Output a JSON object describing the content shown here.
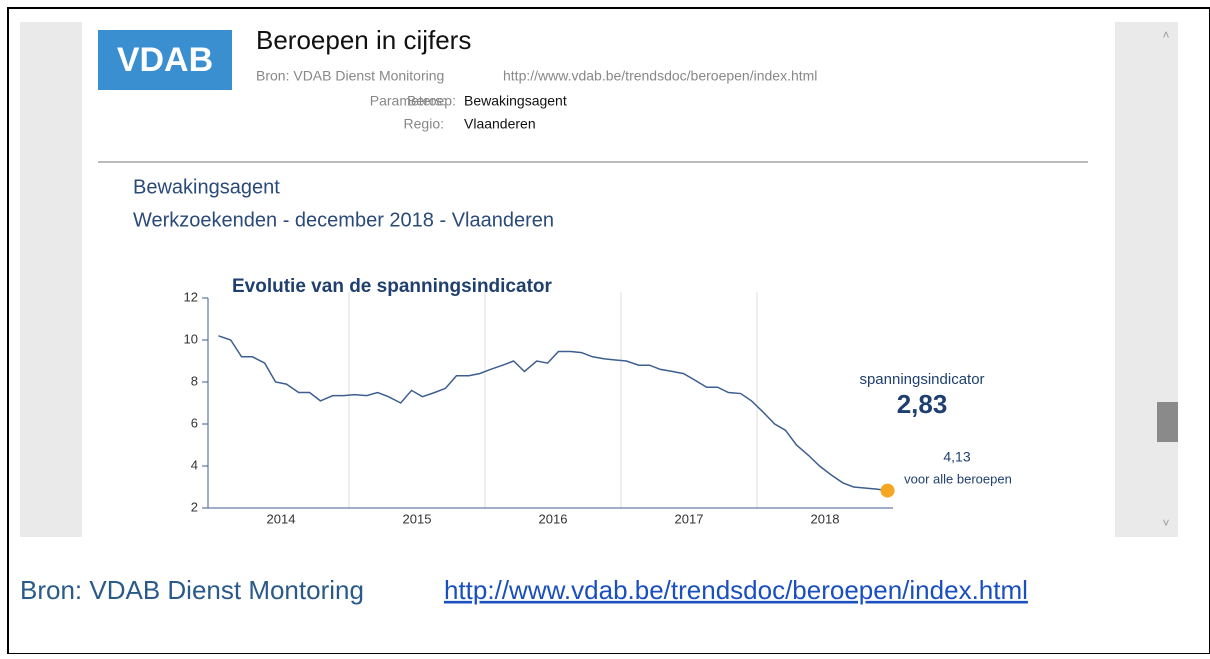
{
  "header": {
    "logo": "VDAB",
    "title": "Beroepen in cijfers",
    "source_label": "Bron: VDAB Dienst Monitoring",
    "source_url": "http://www.vdab.be/trendsdoc/beroepen/index.html",
    "parameters_label": "Parameters:",
    "beroep_label": "Beroep:",
    "beroep": "Bewakingsagent",
    "regio_label": "Regio:",
    "regio": "Vlaanderen"
  },
  "subtitle_1": "Bewakingsagent",
  "subtitle_2": "Werkzoekenden - december 2018 - Vlaanderen",
  "chart_data": {
    "type": "line",
    "title": "Evolutie van de spanningsindicator",
    "x": [
      2014.04,
      2014.13,
      2014.21,
      2014.29,
      2014.38,
      2014.46,
      2014.54,
      2014.63,
      2014.71,
      2014.79,
      2014.88,
      2014.96,
      2015.04,
      2015.13,
      2015.21,
      2015.29,
      2015.38,
      2015.46,
      2015.54,
      2015.63,
      2015.71,
      2015.79,
      2015.88,
      2015.96,
      2016.04,
      2016.13,
      2016.21,
      2016.29,
      2016.38,
      2016.46,
      2016.54,
      2016.63,
      2016.71,
      2016.79,
      2016.88,
      2016.96,
      2017.04,
      2017.13,
      2017.21,
      2017.29,
      2017.38,
      2017.46,
      2017.54,
      2017.63,
      2017.71,
      2017.79,
      2017.88,
      2017.96,
      2018.04,
      2018.13,
      2018.21,
      2018.29,
      2018.38,
      2018.46,
      2018.54,
      2018.63,
      2018.71,
      2018.79,
      2018.88,
      2018.96
    ],
    "series": [
      {
        "color": "#3d5f8f",
        "values": [
          10.2,
          10.0,
          9.2,
          9.2,
          8.9,
          8.0,
          7.9,
          7.5,
          7.5,
          7.1,
          7.35,
          7.35,
          7.4,
          7.35,
          7.5,
          7.3,
          7.0,
          7.6,
          7.3,
          7.5,
          7.7,
          8.3,
          8.3,
          8.4,
          8.6,
          8.8,
          9.0,
          8.5,
          9.0,
          8.9,
          9.45,
          9.45,
          9.4,
          9.2,
          9.1,
          9.05,
          9.0,
          8.8,
          8.8,
          8.6,
          8.5,
          8.4,
          8.1,
          7.75,
          7.75,
          7.5,
          7.45,
          7.1,
          6.6,
          6.0,
          5.7,
          5.0,
          4.5,
          4.0,
          3.6,
          3.2,
          3.0,
          2.95,
          2.9,
          2.83
        ]
      }
    ],
    "marker_color": "#f5a623",
    "xlim": [
      2014,
      2019
    ],
    "ylim": [
      2,
      12
    ],
    "yticks": [
      2,
      4,
      6,
      8,
      10,
      12
    ],
    "xticks": [
      {
        "value": 2014.5,
        "label": "2014"
      },
      {
        "value": 2015.5,
        "label": "2015"
      },
      {
        "value": 2016.5,
        "label": "2016"
      },
      {
        "value": 2017.5,
        "label": "2017"
      },
      {
        "value": 2018.5,
        "label": "2018"
      }
    ],
    "xgrid": [
      2015,
      2016,
      2017,
      2018
    ],
    "annotations": [
      "spanningsindicator",
      "2,83",
      "4,13",
      "voor alle beroepen"
    ]
  },
  "footer": {
    "source": "Bron: VDAB Dienst Montoring",
    "link": "http://www.vdab.be/trendsdoc/beroepen/index.html"
  }
}
